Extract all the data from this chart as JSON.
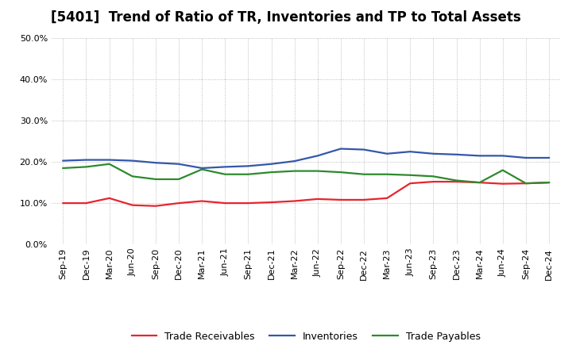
{
  "title": "[5401]  Trend of Ratio of TR, Inventories and TP to Total Assets",
  "labels": [
    "Sep-19",
    "Dec-19",
    "Mar-20",
    "Jun-20",
    "Sep-20",
    "Dec-20",
    "Mar-21",
    "Jun-21",
    "Sep-21",
    "Dec-21",
    "Mar-22",
    "Jun-22",
    "Sep-22",
    "Dec-22",
    "Mar-23",
    "Jun-23",
    "Sep-23",
    "Dec-23",
    "Mar-24",
    "Jun-24",
    "Sep-24",
    "Dec-24"
  ],
  "trade_receivables": [
    10.0,
    10.0,
    11.2,
    9.5,
    9.3,
    10.0,
    10.5,
    10.0,
    10.0,
    10.2,
    10.5,
    11.0,
    10.8,
    10.8,
    11.2,
    14.8,
    15.2,
    15.2,
    15.0,
    14.7,
    14.8,
    15.0
  ],
  "inventories": [
    20.3,
    20.5,
    20.5,
    20.3,
    19.8,
    19.5,
    18.5,
    18.8,
    19.0,
    19.5,
    20.2,
    21.5,
    23.2,
    23.0,
    22.0,
    22.5,
    22.0,
    21.8,
    21.5,
    21.5,
    21.0,
    21.0
  ],
  "trade_payables": [
    18.5,
    18.8,
    19.5,
    16.5,
    15.8,
    15.8,
    18.2,
    17.0,
    17.0,
    17.5,
    17.8,
    17.8,
    17.5,
    17.0,
    17.0,
    16.8,
    16.5,
    15.5,
    15.0,
    18.0,
    14.8,
    15.0
  ],
  "colors": {
    "trade_receivables": "#e8242e",
    "inventories": "#3457a8",
    "trade_payables": "#2d8a2d"
  },
  "ylim": [
    0,
    50
  ],
  "yticks": [
    0,
    10,
    20,
    30,
    40,
    50
  ],
  "background_color": "#ffffff",
  "grid_color": "#aaaaaa",
  "legend_labels": [
    "Trade Receivables",
    "Inventories",
    "Trade Payables"
  ],
  "title_fontsize": 12,
  "tick_fontsize": 8,
  "legend_fontsize": 9
}
